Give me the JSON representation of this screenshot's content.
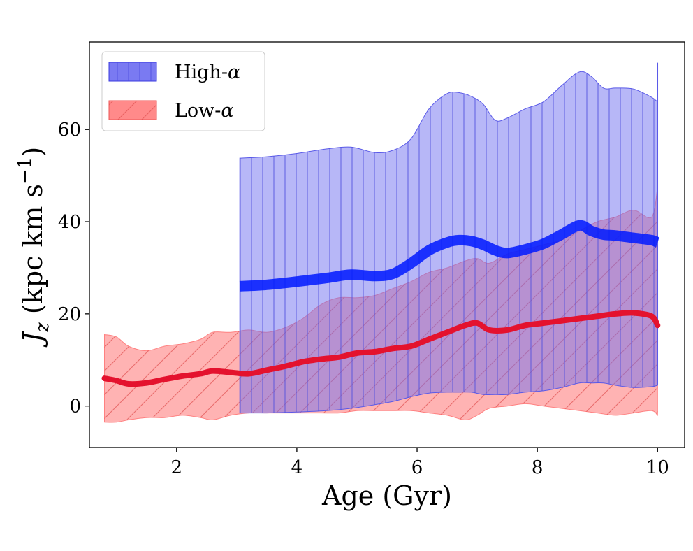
{
  "chart_data": {
    "type": "line",
    "title": "",
    "xlabel": "Age (Gyr)",
    "ylabel": "J_z (kpc km s^-1)",
    "ylabel_parts": {
      "J": "J",
      "sub": "z",
      "rest": " (kpc km s",
      "exp": "−1",
      "close": ")"
    },
    "xlim": [
      0.55,
      10.45
    ],
    "ylim": [
      -9,
      79
    ],
    "x_ticks": [
      2,
      4,
      6,
      8,
      10
    ],
    "y_ticks": [
      0,
      20,
      40,
      60
    ],
    "grid": false,
    "legend_position": "top-left",
    "series": [
      {
        "name": "High-α",
        "legend_base": "High-",
        "legend_symbol": "α",
        "color": "#0019ff",
        "fill_color": "#6f6ff0",
        "hatch": "vertical",
        "x": [
          3.05,
          3.5,
          4.0,
          4.5,
          4.9,
          5.3,
          5.6,
          5.9,
          6.2,
          6.5,
          6.7,
          6.9,
          7.1,
          7.3,
          7.5,
          7.8,
          8.1,
          8.4,
          8.7,
          8.9,
          9.1,
          9.3,
          9.6,
          9.9,
          10.0
        ],
        "mean": [
          26.0,
          26.3,
          27.0,
          27.8,
          28.5,
          28.2,
          28.7,
          31.0,
          33.8,
          35.5,
          36.0,
          35.8,
          35.0,
          33.8,
          33.2,
          34.0,
          35.2,
          37.2,
          39.2,
          38.0,
          37.2,
          37.0,
          36.5,
          36.0,
          35.5
        ],
        "upper": [
          53.8,
          54.1,
          54.8,
          55.8,
          56.2,
          55.0,
          55.5,
          58.0,
          64.5,
          67.8,
          68.0,
          67.2,
          65.5,
          62.0,
          62.5,
          64.5,
          66.0,
          69.5,
          72.5,
          71.5,
          69.0,
          69.0,
          68.8,
          67.0,
          66.0
        ],
        "lower": [
          -1.5,
          -1.5,
          -1.3,
          -1.0,
          -0.5,
          0.3,
          1.0,
          2.0,
          2.8,
          3.0,
          3.0,
          3.0,
          2.5,
          2.5,
          2.5,
          3.0,
          3.3,
          4.0,
          5.0,
          5.0,
          5.0,
          4.5,
          4.0,
          4.2,
          4.5
        ]
      },
      {
        "name": "Low-α",
        "legend_base": "Low-",
        "legend_symbol": "α",
        "color": "#e4122e",
        "fill_color": "#ff8080",
        "hatch": "diagonal",
        "x": [
          0.8,
          1.0,
          1.2,
          1.5,
          1.8,
          2.1,
          2.4,
          2.6,
          2.9,
          3.2,
          3.5,
          3.8,
          4.1,
          4.4,
          4.7,
          5.0,
          5.3,
          5.6,
          5.9,
          6.2,
          6.5,
          6.8,
          7.0,
          7.2,
          7.5,
          7.8,
          8.1,
          8.4,
          8.7,
          9.0,
          9.3,
          9.6,
          9.9,
          10.0
        ],
        "mean": [
          6.0,
          5.5,
          4.8,
          5.0,
          5.8,
          6.5,
          7.0,
          7.6,
          7.3,
          7.0,
          7.8,
          8.6,
          9.6,
          10.2,
          10.6,
          11.5,
          11.8,
          12.5,
          13.0,
          14.5,
          16.0,
          17.5,
          18.0,
          16.5,
          16.5,
          17.5,
          18.0,
          18.5,
          19.0,
          19.5,
          20.0,
          20.2,
          19.5,
          17.5
        ],
        "upper": [
          15.5,
          15.0,
          13.0,
          12.0,
          13.0,
          13.5,
          14.5,
          16.0,
          16.0,
          16.5,
          16.0,
          17.0,
          19.0,
          22.0,
          23.5,
          23.5,
          24.0,
          25.5,
          27.0,
          29.0,
          30.0,
          31.5,
          32.0,
          31.0,
          33.0,
          34.0,
          35.0,
          36.0,
          38.0,
          40.0,
          41.0,
          42.5,
          41.0,
          47.5
        ],
        "lower": [
          -3.5,
          -3.5,
          -3.0,
          -2.5,
          -2.5,
          -2.0,
          -2.5,
          -3.0,
          -2.0,
          -1.5,
          -1.5,
          -1.5,
          -1.5,
          -1.5,
          -1.5,
          -1.0,
          -1.0,
          -1.0,
          -1.0,
          -1.5,
          -2.0,
          -3.0,
          -2.0,
          -0.5,
          0.0,
          0.5,
          0.0,
          -0.5,
          -1.0,
          -1.5,
          -2.0,
          -1.5,
          -1.0,
          -2.0
        ]
      }
    ]
  }
}
